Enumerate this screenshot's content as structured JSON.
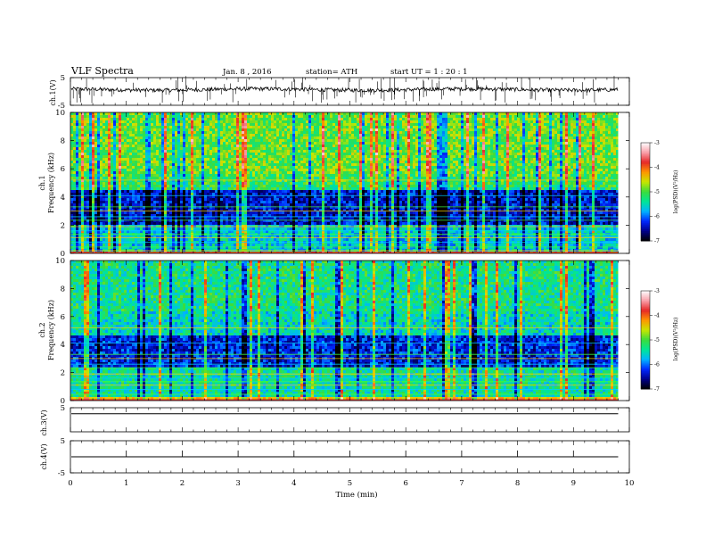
{
  "header": {
    "title": "VLF  Spectra",
    "date": "Jan.  8   , 2016",
    "station": "station= ATH",
    "start": "start  UT  =    1  : 20 : 1"
  },
  "chart_data": [
    {
      "type": "line",
      "name": "ch1-waveform",
      "ylabel": "ch.1(V)",
      "ylim": [
        -5,
        5
      ],
      "y_ticks": [
        "5",
        "-5"
      ],
      "baseline_v": 0.7
    },
    {
      "type": "heatmap",
      "name": "ch1-spectrogram",
      "ylabel_channel": "ch.1",
      "ylabel": "Frequency  (kHz)",
      "ylim": [
        0,
        10
      ],
      "y_ticks": [
        "0",
        "2",
        "4",
        "6",
        "8",
        "10"
      ],
      "x_range_min": [
        0,
        9.8
      ],
      "colorbar": {
        "label": "log(PSD)(V²/Hz)",
        "range": [
          -7,
          -3
        ],
        "ticks": [
          "-3",
          "-4",
          "-5",
          "-6",
          "-7"
        ]
      }
    },
    {
      "type": "heatmap",
      "name": "ch2-spectrogram",
      "ylabel_channel": "ch.2",
      "ylabel": "Frequency  (kHz)",
      "ylim": [
        0,
        10
      ],
      "y_ticks": [
        "0",
        "2",
        "4",
        "6",
        "8",
        "10"
      ],
      "x_range_min": [
        0,
        9.8
      ],
      "colorbar": {
        "label": "log(PSD)(V²/Hz)",
        "range": [
          -7,
          -3
        ],
        "ticks": [
          "-3",
          "-4",
          "-5",
          "-6",
          "-7"
        ]
      }
    },
    {
      "type": "line",
      "name": "ch3-waveform",
      "ylabel": "ch.3(V)",
      "ylim": [
        -5,
        5
      ],
      "y_ticks": [
        "5"
      ],
      "baseline_v": 2.5
    },
    {
      "type": "line",
      "name": "ch4-waveform",
      "ylabel": "ch.4(V)",
      "ylim": [
        -5,
        5
      ],
      "y_ticks": [
        "5",
        "-5"
      ],
      "baseline_v": 0
    }
  ],
  "x_axis": {
    "label": "Time  (min)",
    "range": [
      0,
      10
    ],
    "ticks": [
      "0",
      "1",
      "2",
      "3",
      "4",
      "5",
      "6",
      "7",
      "8",
      "9",
      "10"
    ]
  }
}
